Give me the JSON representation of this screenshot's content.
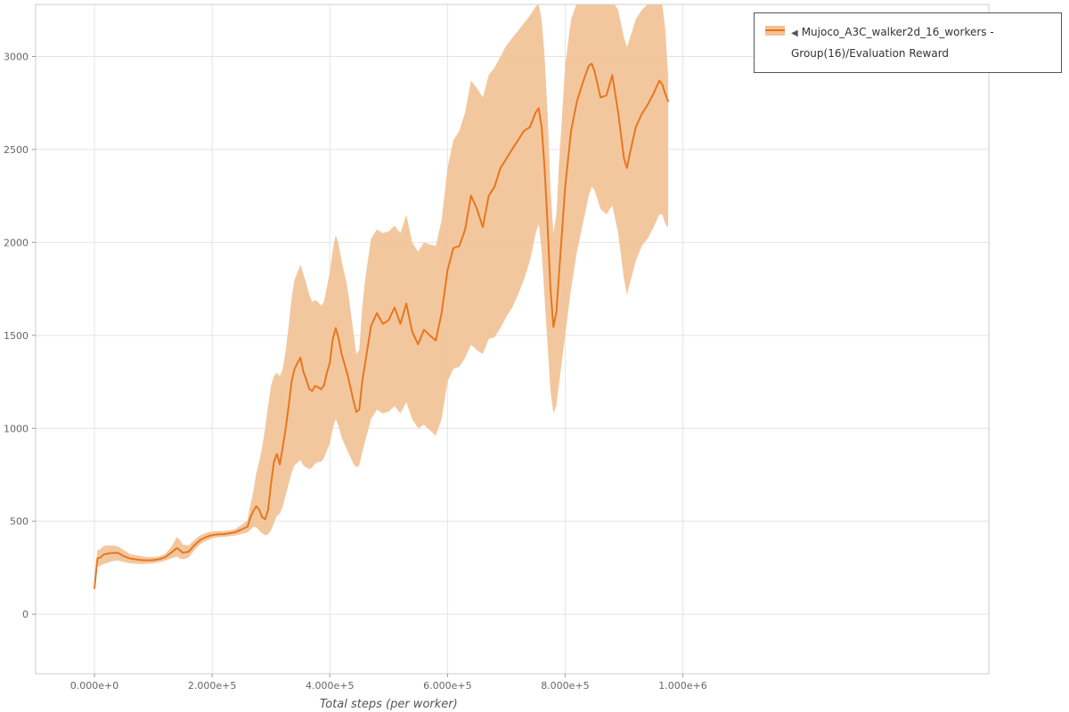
{
  "page": {
    "background": "#ffffff"
  },
  "legend": {
    "toggle_icon": "◀",
    "label": "Mujoco_A3C_walker2d_16_workers - Group(16)/Evaluation Reward"
  },
  "colors": {
    "line": "#e8761e",
    "band": "#f2c193",
    "grid": "#e4e4e4",
    "frame": "#cccccc",
    "tick": "#999999",
    "tick_text": "#666666",
    "axis_label": "#555555"
  },
  "chart_data": {
    "type": "line",
    "title": "",
    "xlabel": "Total steps (per worker)",
    "ylabel": "",
    "grid": true,
    "legend_position": "top-right",
    "xlim": [
      -100000,
      1520000
    ],
    "ylim": [
      -320,
      3280
    ],
    "x_ticks": {
      "values": [
        0,
        200000,
        400000,
        600000,
        800000,
        1000000
      ],
      "labels": [
        "0.000e+0",
        "2.000e+5",
        "4.000e+5",
        "6.000e+5",
        "8.000e+5",
        "1.000e+6"
      ]
    },
    "y_ticks": {
      "values": [
        0,
        500,
        1000,
        1500,
        2000,
        2500,
        3000
      ],
      "labels": [
        "0",
        "500",
        "1000",
        "1500",
        "2000",
        "2500",
        "3000"
      ]
    },
    "series": [
      {
        "name": "Mujoco_A3C_walker2d_16_workers - Group(16)/Evaluation Reward",
        "color": "#e8761e",
        "band_color": "#f2c193",
        "x": [
          0,
          5000,
          10000,
          15000,
          20000,
          30000,
          40000,
          50000,
          60000,
          70000,
          80000,
          90000,
          100000,
          110000,
          120000,
          130000,
          140000,
          145000,
          150000,
          160000,
          170000,
          180000,
          190000,
          200000,
          210000,
          220000,
          230000,
          240000,
          250000,
          260000,
          265000,
          270000,
          275000,
          280000,
          285000,
          290000,
          295000,
          300000,
          305000,
          310000,
          315000,
          320000,
          325000,
          330000,
          335000,
          340000,
          350000,
          355000,
          360000,
          365000,
          370000,
          375000,
          380000,
          385000,
          390000,
          395000,
          400000,
          405000,
          410000,
          415000,
          420000,
          430000,
          440000,
          445000,
          450000,
          455000,
          460000,
          470000,
          480000,
          490000,
          500000,
          510000,
          520000,
          530000,
          540000,
          550000,
          560000,
          570000,
          580000,
          590000,
          600000,
          610000,
          620000,
          630000,
          640000,
          650000,
          660000,
          670000,
          680000,
          690000,
          700000,
          710000,
          720000,
          730000,
          740000,
          750000,
          755000,
          760000,
          765000,
          770000,
          775000,
          780000,
          785000,
          790000,
          800000,
          810000,
          820000,
          830000,
          840000,
          845000,
          850000,
          860000,
          870000,
          880000,
          890000,
          900000,
          905000,
          910000,
          920000,
          930000,
          940000,
          950000,
          960000,
          965000,
          970000,
          975000
        ],
        "mean": [
          140,
          300,
          305,
          320,
          325,
          330,
          330,
          312,
          300,
          295,
          291,
          290,
          291,
          296,
          306,
          330,
          356,
          345,
          331,
          336,
          372,
          400,
          416,
          426,
          430,
          431,
          436,
          442,
          456,
          471,
          520,
          556,
          581,
          562,
          522,
          511,
          560,
          700,
          820,
          862,
          805,
          900,
          1000,
          1120,
          1250,
          1320,
          1380,
          1305,
          1262,
          1212,
          1200,
          1228,
          1222,
          1210,
          1230,
          1300,
          1352,
          1480,
          1540,
          1482,
          1400,
          1290,
          1150,
          1088,
          1100,
          1250,
          1350,
          1550,
          1620,
          1562,
          1582,
          1650,
          1562,
          1672,
          1520,
          1452,
          1530,
          1500,
          1472,
          1620,
          1850,
          1970,
          1980,
          2070,
          2252,
          2180,
          2082,
          2250,
          2300,
          2400,
          2450,
          2502,
          2550,
          2600,
          2620,
          2700,
          2722,
          2620,
          2400,
          2100,
          1750,
          1545,
          1625,
          1850,
          2300,
          2600,
          2760,
          2860,
          2950,
          2962,
          2920,
          2780,
          2790,
          2900,
          2700,
          2450,
          2400,
          2480,
          2620,
          2690,
          2740,
          2800,
          2870,
          2850,
          2800,
          2760
        ],
        "lower": [
          130,
          255,
          260,
          270,
          275,
          285,
          290,
          280,
          275,
          272,
          270,
          272,
          275,
          280,
          288,
          300,
          310,
          300,
          295,
          305,
          345,
          378,
          395,
          408,
          414,
          416,
          420,
          424,
          432,
          440,
          455,
          470,
          468,
          450,
          435,
          425,
          430,
          450,
          490,
          530,
          540,
          580,
          640,
          700,
          760,
          800,
          830,
          800,
          790,
          780,
          790,
          810,
          820,
          820,
          840,
          880,
          920,
          1000,
          1050,
          1010,
          950,
          880,
          810,
          790,
          800,
          870,
          930,
          1050,
          1100,
          1080,
          1090,
          1120,
          1080,
          1140,
          1050,
          1000,
          1020,
          990,
          960,
          1050,
          1250,
          1320,
          1330,
          1380,
          1450,
          1420,
          1400,
          1480,
          1490,
          1540,
          1600,
          1650,
          1720,
          1800,
          1900,
          2050,
          2100,
          1950,
          1700,
          1450,
          1200,
          1080,
          1120,
          1250,
          1500,
          1750,
          1950,
          2100,
          2250,
          2300,
          2280,
          2180,
          2150,
          2200,
          2050,
          1800,
          1720,
          1780,
          1900,
          1980,
          2020,
          2080,
          2150,
          2150,
          2100,
          2080
        ],
        "upper": [
          150,
          345,
          350,
          365,
          370,
          370,
          365,
          345,
          325,
          318,
          312,
          308,
          307,
          312,
          324,
          360,
          415,
          400,
          375,
          370,
          400,
          425,
          438,
          445,
          447,
          448,
          452,
          460,
          480,
          505,
          590,
          660,
          760,
          820,
          900,
          1000,
          1120,
          1230,
          1280,
          1300,
          1280,
          1320,
          1420,
          1550,
          1700,
          1800,
          1880,
          1830,
          1780,
          1720,
          1680,
          1690,
          1680,
          1660,
          1680,
          1760,
          1840,
          1960,
          2040,
          1990,
          1900,
          1760,
          1520,
          1400,
          1420,
          1650,
          1800,
          2020,
          2070,
          2050,
          2060,
          2090,
          2050,
          2150,
          2000,
          1950,
          2000,
          1990,
          1980,
          2120,
          2400,
          2550,
          2600,
          2700,
          2870,
          2830,
          2780,
          2900,
          2940,
          3000,
          3060,
          3100,
          3140,
          3180,
          3220,
          3270,
          3280,
          3200,
          3000,
          2700,
          2300,
          2050,
          2150,
          2450,
          2950,
          3200,
          3290,
          3300,
          3310,
          3310,
          3300,
          3280,
          3280,
          3300,
          3250,
          3100,
          3050,
          3100,
          3200,
          3250,
          3280,
          3300,
          3300,
          3280,
          3150,
          2900
        ]
      }
    ]
  }
}
